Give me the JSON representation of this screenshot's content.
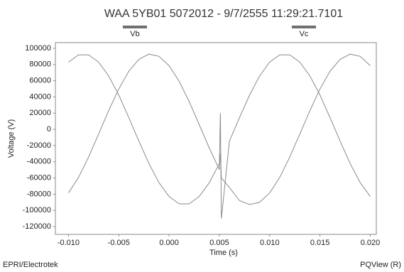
{
  "chart_data": {
    "type": "line",
    "title": "WAA 5YB01 5072012 - 9/7/2555 11:29:21.7101",
    "x_label": "Time (s)",
    "y_label": "Voltage (V)",
    "footer_left": "EPRI/Electrotek",
    "footer_right": "PQView (R)",
    "x": [
      -0.01,
      -0.009,
      -0.008,
      -0.007,
      -0.006,
      -0.005,
      -0.004,
      -0.003,
      -0.002,
      -0.001,
      0.0,
      0.001,
      0.002,
      0.003,
      0.004,
      0.005,
      0.0051,
      0.0052,
      0.006,
      0.007,
      0.008,
      0.009,
      0.01,
      0.011,
      0.012,
      0.013,
      0.014,
      0.015,
      0.016,
      0.017,
      0.018,
      0.019,
      0.02
    ],
    "series": [
      {
        "name": "Vb",
        "color": "#8a8a8a",
        "legend_color": "#707070",
        "values": [
          82900,
          91900,
          91900,
          82900,
          65800,
          42200,
          14500,
          -14500,
          -42200,
          -65800,
          -82900,
          -91900,
          -91900,
          -82900,
          -65800,
          -42200,
          20000,
          -110000,
          -14500,
          14500,
          42200,
          65800,
          82900,
          91900,
          91900,
          82900,
          65800,
          42200,
          14500,
          -14500,
          -42200,
          -65800,
          -82900
        ]
      },
      {
        "name": "Vc",
        "color": "#8a8a8a",
        "legend_color": "#707070",
        "values": [
          -78500,
          -59300,
          -34200,
          -5800,
          23100,
          49800,
          71700,
          86400,
          92800,
          90100,
          78500,
          59300,
          34200,
          5800,
          -23100,
          -49800,
          -30000,
          -60000,
          -71700,
          -88000,
          -92800,
          -90100,
          -78500,
          -59300,
          -34200,
          -5800,
          23100,
          49800,
          71700,
          86400,
          92800,
          90100,
          78500
        ]
      }
    ],
    "xlim": [
      -0.0113,
      0.0206
    ],
    "ylim": [
      -129600,
      107000
    ],
    "xticks": [
      {
        "value": -0.01,
        "label": "-0.010"
      },
      -0.005,
      {
        "value": 0,
        "label": "0.000"
      },
      0.005,
      {
        "value": 0.01,
        "label": "0.010"
      },
      0.015,
      {
        "value": 0.02,
        "label": "0.020"
      }
    ],
    "yticks": [
      100000,
      80000,
      60000,
      40000,
      20000,
      0,
      -20000,
      -40000,
      -60000,
      -80000,
      -100000,
      -120000
    ],
    "grid": false
  }
}
